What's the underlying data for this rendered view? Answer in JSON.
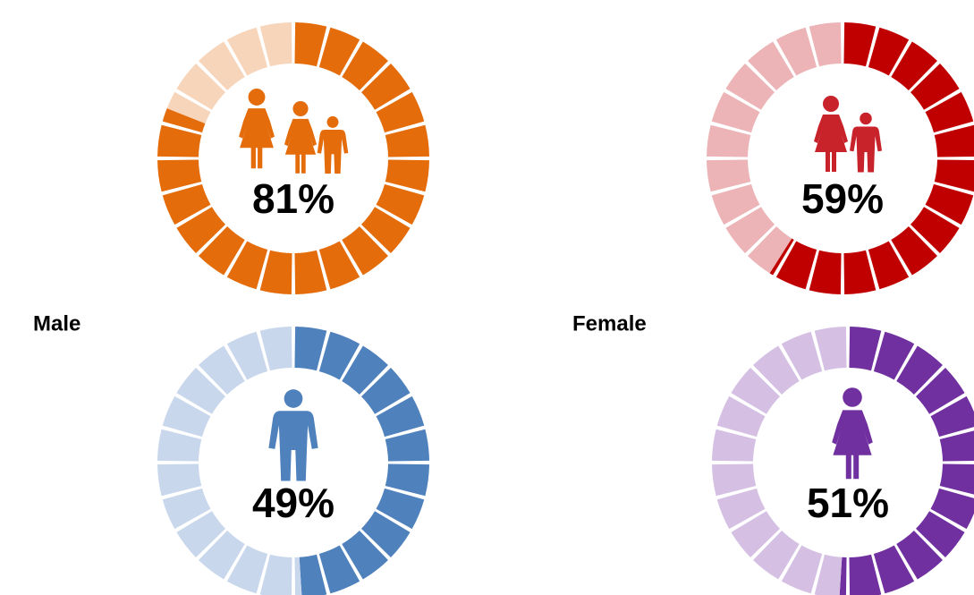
{
  "chart_data": [
    {
      "type": "donut",
      "values": [
        81
      ],
      "value_labels": [
        "81%"
      ],
      "color": "#e46c0a",
      "track_color": "#f7d5bb"
    },
    {
      "type": "donut",
      "values": [
        59
      ],
      "value_labels": [
        "59%"
      ],
      "color": "#c00000",
      "track_color": "#ecb4b6"
    },
    {
      "type": "donut",
      "title": "Male",
      "values": [
        49
      ],
      "value_labels": [
        "49%"
      ],
      "color": "#4f81bd",
      "track_color": "#c8d7eb"
    },
    {
      "type": "donut",
      "title": "Female",
      "values": [
        51
      ],
      "value_labels": [
        "51%"
      ],
      "color": "#7030a0",
      "track_color": "#d5c0e4"
    }
  ]
}
